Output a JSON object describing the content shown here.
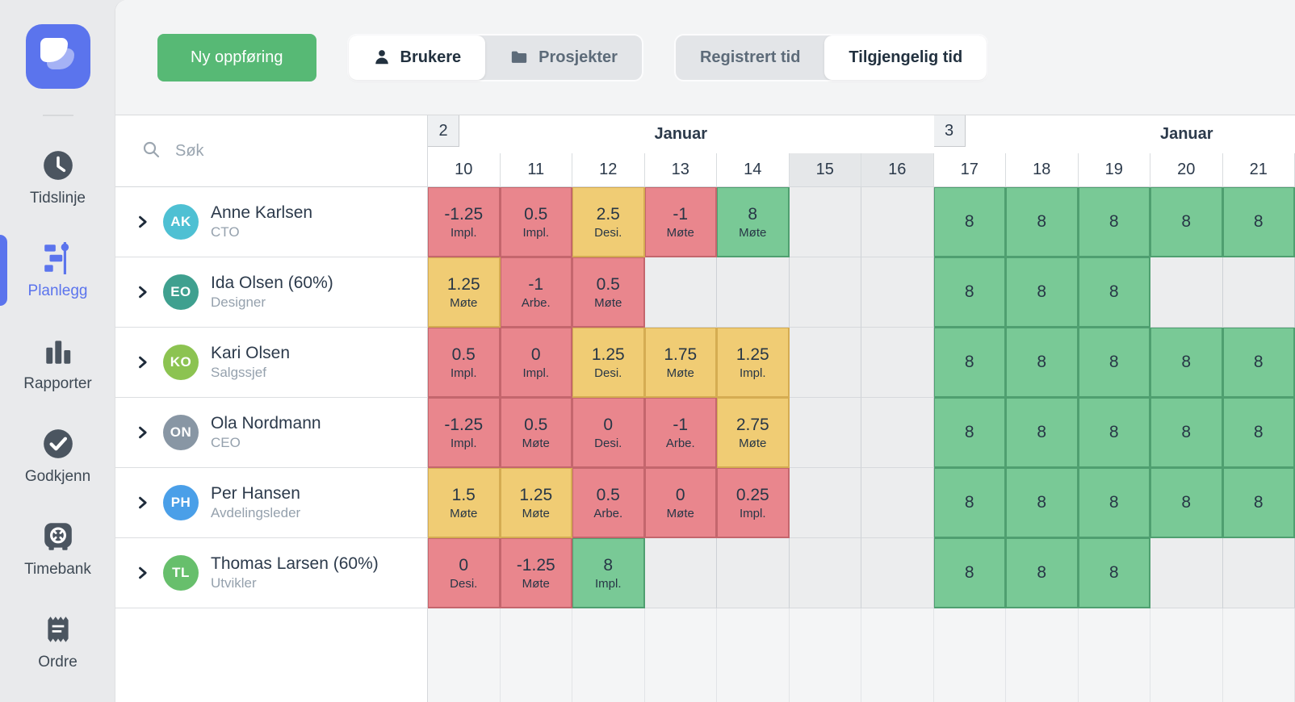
{
  "sidebar": {
    "items": [
      {
        "id": "tidslinje",
        "label": "Tidslinje",
        "icon": "clock-icon",
        "active": false
      },
      {
        "id": "planlegg",
        "label": "Planlegg",
        "icon": "gantt-icon",
        "active": true
      },
      {
        "id": "rapporter",
        "label": "Rapporter",
        "icon": "bar-chart-icon",
        "active": false
      },
      {
        "id": "godkjenn",
        "label": "Godkjenn",
        "icon": "check-circle-icon",
        "active": false
      },
      {
        "id": "timebank",
        "label": "Timebank",
        "icon": "safe-icon",
        "active": false
      },
      {
        "id": "ordre",
        "label": "Ordre",
        "icon": "receipt-icon",
        "active": false
      }
    ]
  },
  "toolbar": {
    "new_entry_label": "Ny oppføring",
    "view_toggle": [
      {
        "label": "Brukere",
        "icon": "user-icon",
        "active": true
      },
      {
        "label": "Prosjekter",
        "icon": "folder-icon",
        "active": false
      }
    ],
    "time_toggle": [
      {
        "label": "Registrert tid",
        "active": false
      },
      {
        "label": "Tilgjengelig tid",
        "active": true
      }
    ]
  },
  "grid": {
    "search_placeholder": "Søk",
    "weeks": [
      {
        "number": "2",
        "month": "Januar",
        "days": [
          "10",
          "11",
          "12",
          "13",
          "14",
          "15",
          "16"
        ],
        "weekend_days": [
          "15",
          "16"
        ]
      },
      {
        "number": "3",
        "month": "Januar",
        "days": [
          "17",
          "18",
          "19",
          "20",
          "21"
        ],
        "weekend_days": []
      }
    ],
    "users": [
      {
        "initials": "AK",
        "name": "Anne Karlsen",
        "role": "CTO",
        "avatar_color": "#4ec0d3",
        "week2": [
          {
            "value": "-1.25",
            "tag": "Impl.",
            "status": "red"
          },
          {
            "value": "0.5",
            "tag": "Impl.",
            "status": "red"
          },
          {
            "value": "2.5",
            "tag": "Desi.",
            "status": "yellow"
          },
          {
            "value": "-1",
            "tag": "Møte",
            "status": "red"
          },
          {
            "value": "8",
            "tag": "Møte",
            "status": "green"
          },
          null,
          null
        ],
        "week3": [
          {
            "value": "8",
            "status": "green"
          },
          {
            "value": "8",
            "status": "green"
          },
          {
            "value": "8",
            "status": "green"
          },
          {
            "value": "8",
            "status": "green"
          },
          {
            "value": "8",
            "status": "green"
          }
        ]
      },
      {
        "initials": "EO",
        "name": "Ida Olsen (60%)",
        "role": "Designer",
        "avatar_color": "#3fa08f",
        "week2": [
          {
            "value": "1.25",
            "tag": "Møte",
            "status": "yellow"
          },
          {
            "value": "-1",
            "tag": "Arbe.",
            "status": "red"
          },
          {
            "value": "0.5",
            "tag": "Møte",
            "status": "red"
          },
          null,
          null,
          null,
          null
        ],
        "week3": [
          {
            "value": "8",
            "status": "green"
          },
          {
            "value": "8",
            "status": "green"
          },
          {
            "value": "8",
            "status": "green"
          },
          null,
          null
        ]
      },
      {
        "initials": "KO",
        "name": "Kari Olsen",
        "role": "Salgssjef",
        "avatar_color": "#8cc351",
        "week2": [
          {
            "value": "0.5",
            "tag": "Impl.",
            "status": "red"
          },
          {
            "value": "0",
            "tag": "Impl.",
            "status": "red"
          },
          {
            "value": "1.25",
            "tag": "Desi.",
            "status": "yellow"
          },
          {
            "value": "1.75",
            "tag": "Møte",
            "status": "yellow"
          },
          {
            "value": "1.25",
            "tag": "Impl.",
            "status": "yellow"
          },
          null,
          null
        ],
        "week3": [
          {
            "value": "8",
            "status": "green"
          },
          {
            "value": "8",
            "status": "green"
          },
          {
            "value": "8",
            "status": "green"
          },
          {
            "value": "8",
            "status": "green"
          },
          {
            "value": "8",
            "status": "green"
          }
        ]
      },
      {
        "initials": "ON",
        "name": "Ola Nordmann",
        "role": "CEO",
        "avatar_color": "#8896a4",
        "week2": [
          {
            "value": "-1.25",
            "tag": "Impl.",
            "status": "red"
          },
          {
            "value": "0.5",
            "tag": "Møte",
            "status": "red"
          },
          {
            "value": "0",
            "tag": "Desi.",
            "status": "red"
          },
          {
            "value": "-1",
            "tag": "Arbe.",
            "status": "red"
          },
          {
            "value": "2.75",
            "tag": "Møte",
            "status": "yellow"
          },
          null,
          null
        ],
        "week3": [
          {
            "value": "8",
            "status": "green"
          },
          {
            "value": "8",
            "status": "green"
          },
          {
            "value": "8",
            "status": "green"
          },
          {
            "value": "8",
            "status": "green"
          },
          {
            "value": "8",
            "status": "green"
          }
        ]
      },
      {
        "initials": "PH",
        "name": "Per Hansen",
        "role": "Avdelingsleder",
        "avatar_color": "#4a9fe8",
        "week2": [
          {
            "value": "1.5",
            "tag": "Møte",
            "status": "yellow"
          },
          {
            "value": "1.25",
            "tag": "Møte",
            "status": "yellow"
          },
          {
            "value": "0.5",
            "tag": "Arbe.",
            "status": "red"
          },
          {
            "value": "0",
            "tag": "Møte",
            "status": "red"
          },
          {
            "value": "0.25",
            "tag": "Impl.",
            "status": "red"
          },
          null,
          null
        ],
        "week3": [
          {
            "value": "8",
            "status": "green"
          },
          {
            "value": "8",
            "status": "green"
          },
          {
            "value": "8",
            "status": "green"
          },
          {
            "value": "8",
            "status": "green"
          },
          {
            "value": "8",
            "status": "green"
          }
        ]
      },
      {
        "initials": "TL",
        "name": "Thomas Larsen (60%)",
        "role": "Utvikler",
        "avatar_color": "#67bf6c",
        "week2": [
          {
            "value": "0",
            "tag": "Desi.",
            "status": "red"
          },
          {
            "value": "-1.25",
            "tag": "Møte",
            "status": "red"
          },
          {
            "value": "8",
            "tag": "Impl.",
            "status": "green"
          },
          null,
          null,
          null,
          null
        ],
        "week3": [
          {
            "value": "8",
            "status": "green"
          },
          {
            "value": "8",
            "status": "green"
          },
          {
            "value": "8",
            "status": "green"
          },
          null,
          null
        ]
      }
    ]
  },
  "colors": {
    "accent": "#5b74ed",
    "button_green": "#57b975",
    "cell_red": "#e9868d",
    "cell_yellow": "#f0cc74",
    "cell_green": "#79c996",
    "weekend_gray": "#e5e7e9"
  }
}
